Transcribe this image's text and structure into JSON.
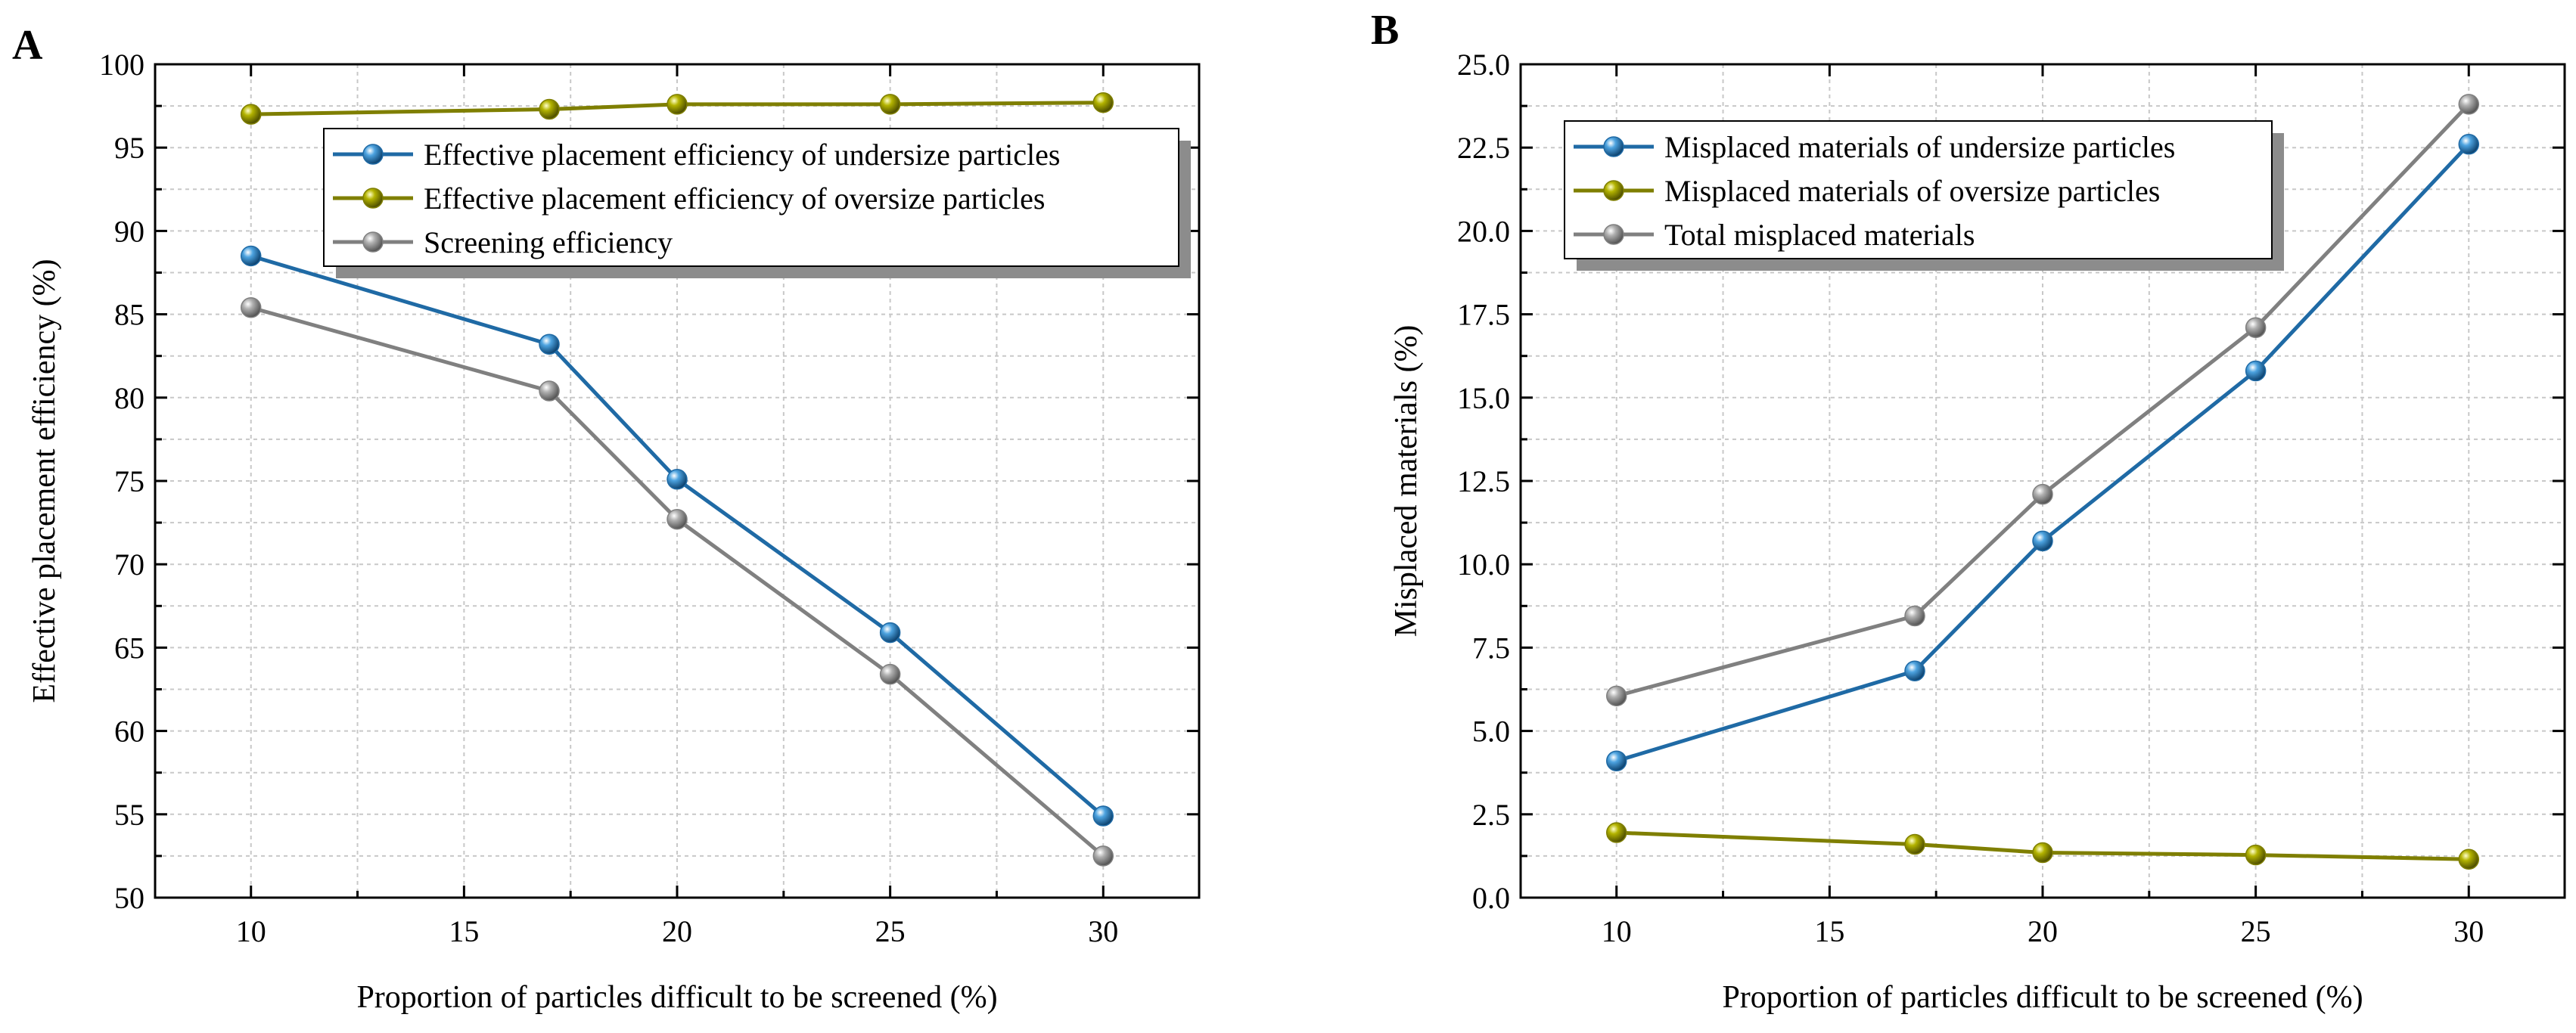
{
  "chart_data": [
    {
      "type": "line",
      "panel_label": "A",
      "x": [
        10,
        17,
        20,
        25,
        30
      ],
      "series": [
        {
          "name": "Effective placement efficiency of undersize particles",
          "values": [
            88.5,
            83.2,
            75.1,
            65.9,
            54.9
          ],
          "color": "#1f6aa5"
        },
        {
          "name": "Effective placement efficiency of oversize particles",
          "values": [
            97.0,
            97.3,
            97.6,
            97.6,
            97.7
          ],
          "color": "#7f7f00"
        },
        {
          "name": "Screening efficiency",
          "values": [
            85.4,
            80.4,
            72.7,
            63.4,
            52.5
          ],
          "color": "#808080"
        }
      ],
      "xlabel": "Proportion of particles difficult to be screened (%)",
      "ylabel": "Effective placement efficiency (%)",
      "xlim": [
        7.75,
        32.25
      ],
      "ylim": [
        50,
        100
      ],
      "xticks": [
        10,
        15,
        20,
        25,
        30
      ],
      "xtick_labels": [
        "10",
        "15",
        "20",
        "25",
        "30"
      ],
      "yticks": [
        50,
        55,
        60,
        65,
        70,
        75,
        80,
        85,
        90,
        95,
        100
      ],
      "ytick_labels": [
        "50",
        "55",
        "60",
        "65",
        "70",
        "75",
        "80",
        "85",
        "90",
        "95",
        "100"
      ],
      "grid": true,
      "legend_position": "top-right"
    },
    {
      "type": "line",
      "panel_label": "B",
      "x": [
        10,
        17,
        20,
        25,
        30
      ],
      "series": [
        {
          "name": "Misplaced materials of undersize particles",
          "values": [
            4.1,
            6.8,
            10.7,
            15.8,
            22.6
          ],
          "color": "#1f6aa5"
        },
        {
          "name": "Misplaced materials of oversize particles",
          "values": [
            1.95,
            1.6,
            1.35,
            1.28,
            1.15
          ],
          "color": "#7f7f00"
        },
        {
          "name": "Total misplaced materials",
          "values": [
            6.05,
            8.45,
            12.1,
            17.1,
            23.8
          ],
          "color": "#808080"
        }
      ],
      "xlabel": "Proportion of particles difficult to be screened (%)",
      "ylabel": "Misplaced materials (%)",
      "xlim": [
        7.75,
        32.25
      ],
      "ylim": [
        0,
        25
      ],
      "xticks": [
        10,
        15,
        20,
        25,
        30
      ],
      "xtick_labels": [
        "10",
        "15",
        "20",
        "25",
        "30"
      ],
      "yticks": [
        0,
        2.5,
        5,
        7.5,
        10,
        12.5,
        15,
        17.5,
        20,
        22.5,
        25
      ],
      "ytick_labels": [
        "0.0",
        "2.5",
        "5.0",
        "7.5",
        "10.0",
        "12.5",
        "15.0",
        "17.5",
        "20.0",
        "22.5",
        "25.0"
      ],
      "grid": true,
      "legend_position": "top-left"
    }
  ]
}
